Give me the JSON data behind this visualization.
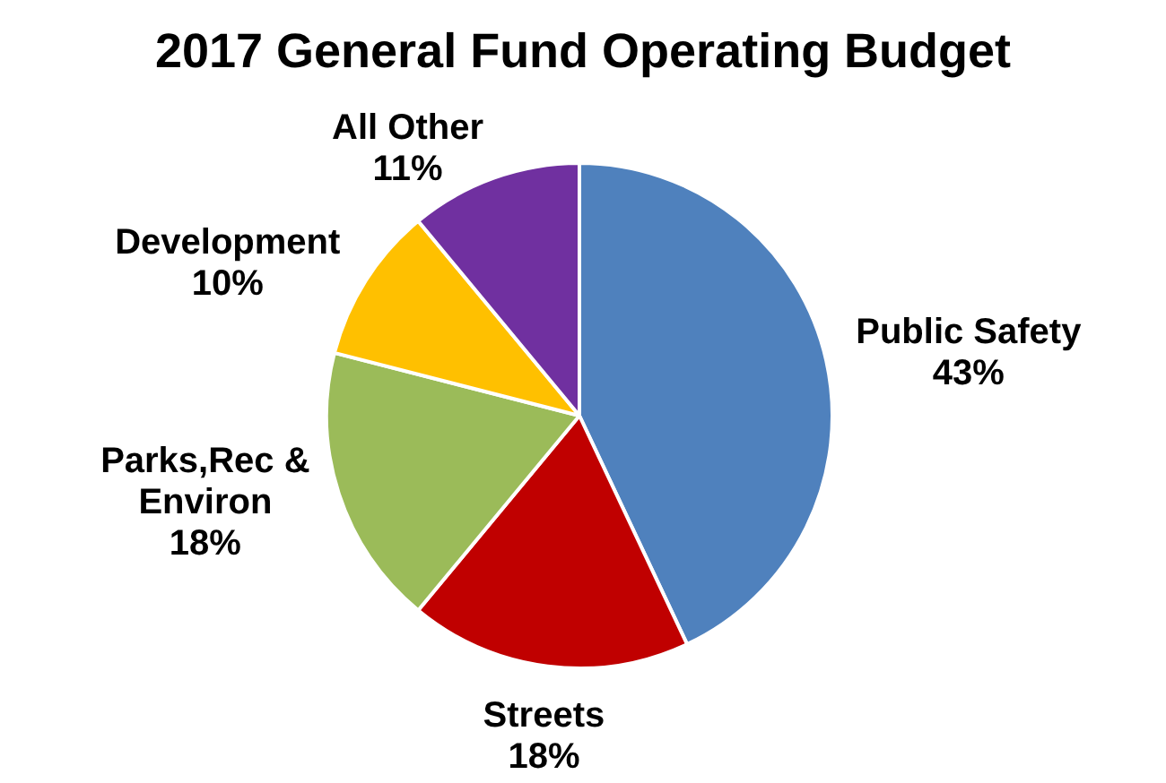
{
  "chart_data": {
    "type": "pie",
    "title": "2017 General Fund Operating Budget",
    "categories": [
      "Public Safety",
      "Streets",
      "Parks,Rec & Environ",
      "Development",
      "All Other"
    ],
    "values": [
      43,
      18,
      18,
      10,
      11
    ],
    "value_labels": [
      "43%",
      "18%",
      "18%",
      "10%",
      "11%"
    ],
    "colors": [
      "#4f81bd",
      "#c00000",
      "#9bbb59",
      "#ffc000",
      "#7030a0"
    ],
    "legend": false
  }
}
